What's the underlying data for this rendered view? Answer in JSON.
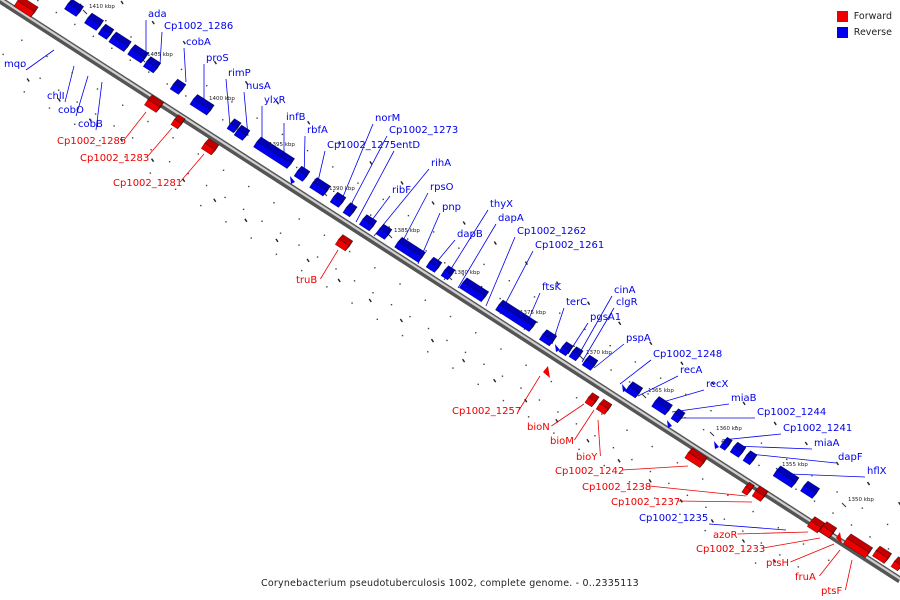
{
  "caption": "Corynebacterium pseudotuberculosis 1002, complete genome. - 0..2335113",
  "legend": [
    {
      "label": "Forward",
      "color": "#ee0000"
    },
    {
      "label": "Reverse",
      "color": "#0000ee"
    }
  ],
  "ticks": [
    "1410 kbp",
    "1405 kbp",
    "1400 kbp",
    "1395 kbp",
    "1390 kbp",
    "1385 kbp",
    "1380 kbp",
    "1375 kbp",
    "1370 kbp",
    "1365 kbp",
    "1360 kbp",
    "1355 kbp",
    "1350 kbp"
  ],
  "reverse_genes": [
    "ada",
    "Cp1002_1286",
    "cobA",
    "proS",
    "rimP",
    "nusA",
    "ylxR",
    "infB",
    "rbfA",
    "norM",
    "Cp1002_1273",
    "Cp1002_1275",
    "entD",
    "rihA",
    "ribF",
    "rpsO",
    "pnp",
    "thyX",
    "dapB",
    "dapA",
    "Cp1002_1262",
    "Cp1002_1261",
    "ftsK",
    "terC",
    "cinA",
    "clgR",
    "pgsA1",
    "pspA",
    "Cp1002_1248",
    "recA",
    "recX",
    "miaB",
    "Cp1002_1244",
    "Cp1002_1241",
    "miaA",
    "dapF",
    "hflX",
    "Cp1002_1235",
    "mqo",
    "chlI",
    "cobO",
    "cobB"
  ],
  "forward_genes": [
    "Cp1002_1285",
    "Cp1002_1283",
    "Cp1002_1281",
    "truB",
    "Cp1002_1257",
    "bioN",
    "bioM",
    "bioY",
    "Cp1002_1242",
    "Cp1002_1238",
    "Cp1002_1237",
    "azoR",
    "Cp1002_1233",
    "ptsH",
    "fruA",
    "ptsF"
  ]
}
